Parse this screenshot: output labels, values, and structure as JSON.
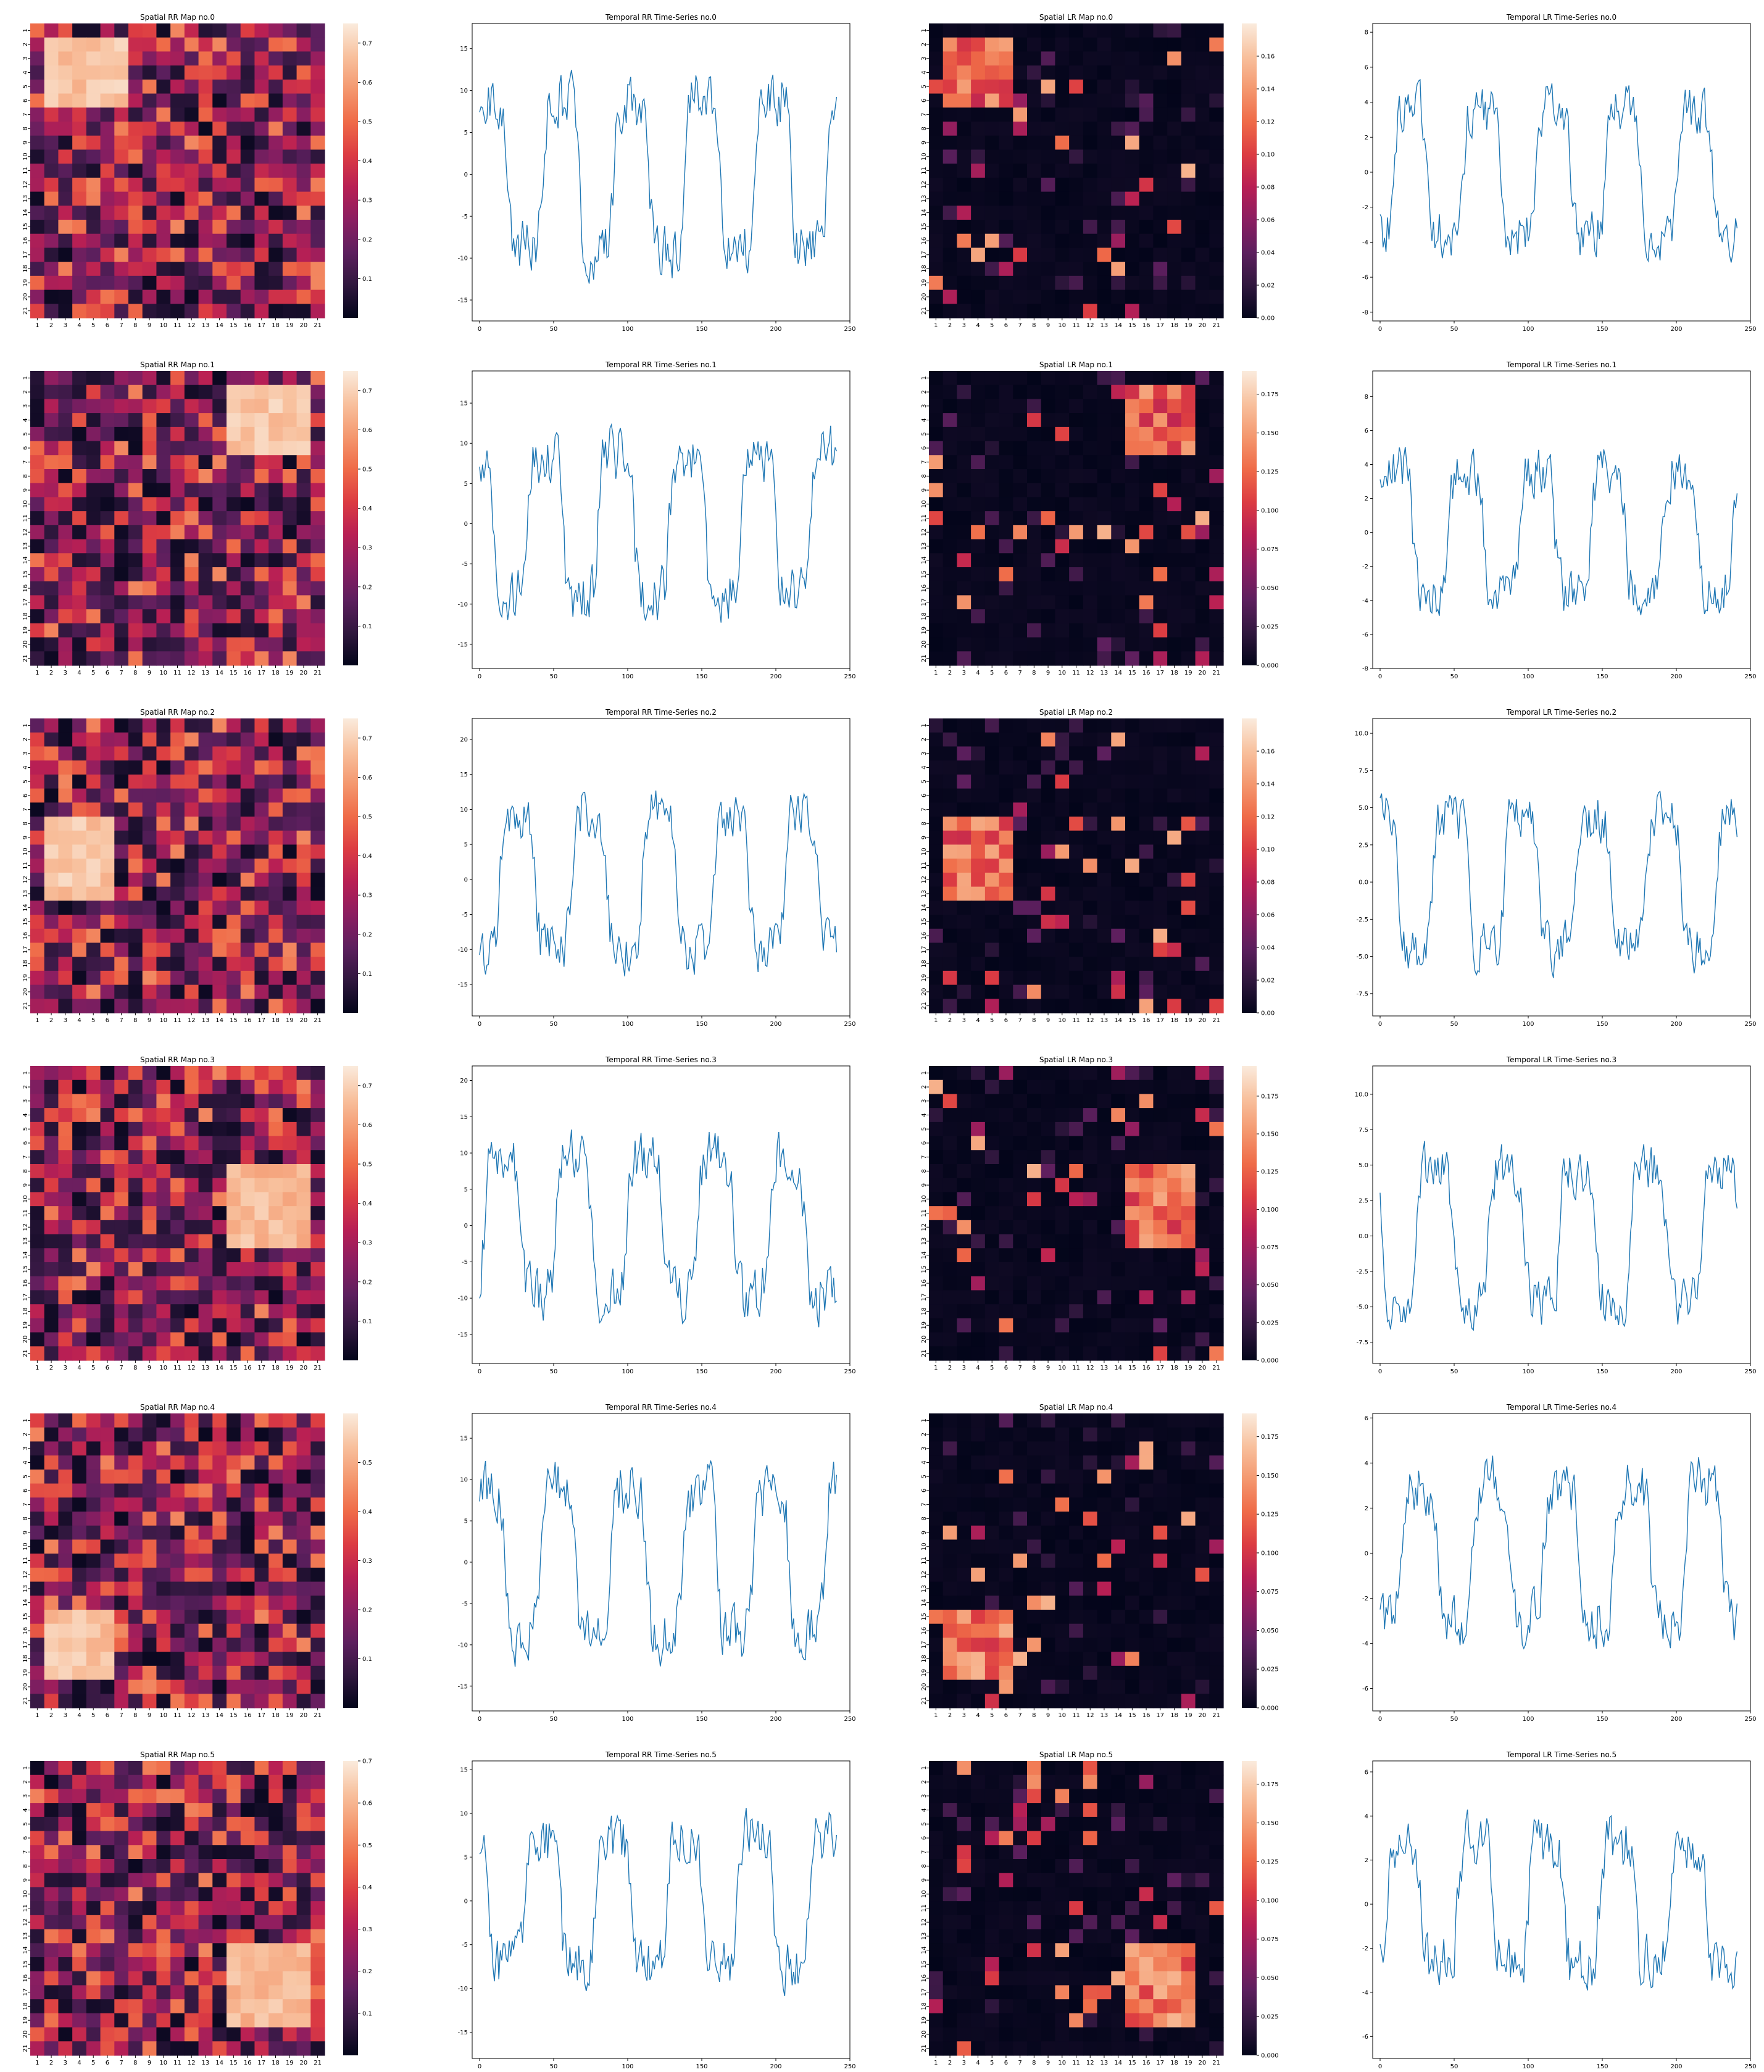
{
  "palette": {
    "line_color": "#1f77b4",
    "heat_colors": [
      "#03051a",
      "#30173e",
      "#5d1f5e",
      "#8b1e61",
      "#b81f54",
      "#dc3c42",
      "#ef6b48",
      "#f4986f",
      "#f8c19e",
      "#faebdd"
    ]
  },
  "cell_labels": [
    "1",
    "2",
    "3",
    "4",
    "5",
    "6",
    "7",
    "8",
    "9",
    "10",
    "11",
    "12",
    "13",
    "14",
    "15",
    "16",
    "17",
    "18",
    "19",
    "20",
    "21"
  ],
  "chart_data": [
    {
      "row": 0,
      "col": 0,
      "type": "heatmap",
      "title": "Spatial RR Map no.0",
      "size": 21,
      "block": {
        "r0": 1,
        "c0": 1,
        "h": 5,
        "w": 6
      },
      "block_level": 0.96,
      "noise_seed": 11,
      "colorbar": {
        "min": 0,
        "max": 0.75,
        "ticks": [
          0.1,
          0.2,
          0.3,
          0.4,
          0.5,
          0.6,
          0.7
        ],
        "decimals": 1
      },
      "sparse": false
    },
    {
      "row": 0,
      "col": 1,
      "type": "line",
      "title": "Temporal RR Time-Series no.0",
      "n_points": 242,
      "xlim": [
        -5,
        250
      ],
      "ylim": [
        -17.5,
        18
      ],
      "xticks": [
        0,
        50,
        100,
        150,
        200,
        250
      ],
      "yticks": [
        -15,
        -10,
        -5,
        0,
        5,
        10,
        15
      ],
      "amplitude": 11,
      "noise": 3.2,
      "seed": 21
    },
    {
      "row": 0,
      "col": 2,
      "type": "heatmap",
      "title": "Spatial LR Map no.0",
      "size": 21,
      "block": {
        "r0": 1,
        "c0": 1,
        "h": 5,
        "w": 5
      },
      "block_level": 0.82,
      "noise_seed": 31,
      "colorbar": {
        "min": 0,
        "max": 0.18,
        "ticks": [
          0.0,
          0.02,
          0.04,
          0.06,
          0.08,
          0.1,
          0.12,
          0.14,
          0.16
        ],
        "decimals": 2
      },
      "sparse": true
    },
    {
      "row": 0,
      "col": 3,
      "type": "line",
      "title": "Temporal LR Time-Series no.0",
      "n_points": 242,
      "xlim": [
        -5,
        250
      ],
      "ylim": [
        -8.5,
        8.5
      ],
      "xticks": [
        0,
        50,
        100,
        150,
        200,
        250
      ],
      "yticks": [
        -8,
        -6,
        -4,
        -2,
        0,
        2,
        4,
        6,
        8
      ],
      "amplitude": 4.5,
      "noise": 1.3,
      "seed": 41
    },
    {
      "row": 1,
      "col": 0,
      "type": "heatmap",
      "title": "Spatial RR Map no.1",
      "size": 21,
      "block": {
        "r0": 1,
        "c0": 14,
        "h": 5,
        "w": 6
      },
      "block_level": 0.96,
      "noise_seed": 12,
      "colorbar": {
        "min": 0,
        "max": 0.75,
        "ticks": [
          0.1,
          0.2,
          0.3,
          0.4,
          0.5,
          0.6,
          0.7
        ],
        "decimals": 1
      },
      "sparse": false
    },
    {
      "row": 1,
      "col": 1,
      "type": "line",
      "title": "Temporal RR Time-Series no.1",
      "n_points": 242,
      "xlim": [
        -5,
        250
      ],
      "ylim": [
        -18,
        19
      ],
      "xticks": [
        0,
        50,
        100,
        150,
        200,
        250
      ],
      "yticks": [
        -15,
        -10,
        -5,
        0,
        5,
        10,
        15
      ],
      "amplitude": 11,
      "noise": 3.2,
      "seed": 22
    },
    {
      "row": 1,
      "col": 2,
      "type": "heatmap",
      "title": "Spatial LR Map no.1",
      "size": 21,
      "block": {
        "r0": 1,
        "c0": 14,
        "h": 5,
        "w": 5
      },
      "block_level": 0.82,
      "noise_seed": 32,
      "colorbar": {
        "min": 0,
        "max": 0.19,
        "ticks": [
          0.0,
          0.025,
          0.05,
          0.075,
          0.1,
          0.125,
          0.15,
          0.175
        ],
        "decimals": 3
      },
      "sparse": true
    },
    {
      "row": 1,
      "col": 3,
      "type": "line",
      "title": "Temporal LR Time-Series no.1",
      "n_points": 242,
      "xlim": [
        -5,
        250
      ],
      "ylim": [
        -8,
        9.5
      ],
      "xticks": [
        0,
        50,
        100,
        150,
        200,
        250
      ],
      "yticks": [
        -8,
        -6,
        -4,
        -2,
        0,
        2,
        4,
        6,
        8
      ],
      "amplitude": 4.5,
      "noise": 1.3,
      "seed": 42
    },
    {
      "row": 2,
      "col": 0,
      "type": "heatmap",
      "title": "Spatial RR Map no.2",
      "size": 21,
      "block": {
        "r0": 7,
        "c0": 1,
        "h": 6,
        "w": 5
      },
      "block_level": 0.96,
      "noise_seed": 13,
      "colorbar": {
        "min": 0,
        "max": 0.75,
        "ticks": [
          0.1,
          0.2,
          0.3,
          0.4,
          0.5,
          0.6,
          0.7
        ],
        "decimals": 1
      },
      "sparse": false
    },
    {
      "row": 2,
      "col": 1,
      "type": "line",
      "title": "Temporal RR Time-Series no.2",
      "n_points": 242,
      "xlim": [
        -5,
        250
      ],
      "ylim": [
        -19.5,
        23
      ],
      "xticks": [
        0,
        50,
        100,
        150,
        200,
        250
      ],
      "yticks": [
        -15,
        -10,
        -5,
        0,
        5,
        10,
        15,
        20
      ],
      "amplitude": 12,
      "noise": 3.4,
      "seed": 23
    },
    {
      "row": 2,
      "col": 2,
      "type": "heatmap",
      "title": "Spatial LR Map no.2",
      "size": 21,
      "block": {
        "r0": 7,
        "c0": 1,
        "h": 6,
        "w": 5
      },
      "block_level": 0.82,
      "noise_seed": 33,
      "colorbar": {
        "min": 0,
        "max": 0.18,
        "ticks": [
          0.0,
          0.02,
          0.04,
          0.06,
          0.08,
          0.1,
          0.12,
          0.14,
          0.16
        ],
        "decimals": 2
      },
      "sparse": true
    },
    {
      "row": 2,
      "col": 3,
      "type": "line",
      "title": "Temporal LR Time-Series no.2",
      "n_points": 242,
      "xlim": [
        -5,
        250
      ],
      "ylim": [
        -9,
        11
      ],
      "xticks": [
        0,
        50,
        100,
        150,
        200,
        250
      ],
      "yticks": [
        -7.5,
        -5.0,
        -2.5,
        0.0,
        2.5,
        5.0,
        7.5,
        10.0
      ],
      "amplitude": 5.5,
      "noise": 1.5,
      "seed": 43
    },
    {
      "row": 3,
      "col": 0,
      "type": "heatmap",
      "title": "Spatial RR Map no.3",
      "size": 21,
      "block": {
        "r0": 7,
        "c0": 14,
        "h": 6,
        "w": 6
      },
      "block_level": 0.93,
      "noise_seed": 14,
      "colorbar": {
        "min": 0,
        "max": 0.75,
        "ticks": [
          0.1,
          0.2,
          0.3,
          0.4,
          0.5,
          0.6,
          0.7
        ],
        "decimals": 1
      },
      "sparse": false
    },
    {
      "row": 3,
      "col": 1,
      "type": "line",
      "title": "Temporal RR Time-Series no.3",
      "n_points": 242,
      "xlim": [
        -5,
        250
      ],
      "ylim": [
        -19,
        22
      ],
      "xticks": [
        0,
        50,
        100,
        150,
        200,
        250
      ],
      "yticks": [
        -15,
        -10,
        -5,
        0,
        5,
        10,
        15,
        20
      ],
      "amplitude": 12,
      "noise": 3.4,
      "seed": 24
    },
    {
      "row": 3,
      "col": 2,
      "type": "heatmap",
      "title": "Spatial LR Map no.3",
      "size": 21,
      "block": {
        "r0": 7,
        "c0": 14,
        "h": 6,
        "w": 5
      },
      "block_level": 0.85,
      "noise_seed": 34,
      "colorbar": {
        "min": 0,
        "max": 0.195,
        "ticks": [
          0.0,
          0.025,
          0.05,
          0.075,
          0.1,
          0.125,
          0.15,
          0.175
        ],
        "decimals": 3
      },
      "sparse": true
    },
    {
      "row": 3,
      "col": 3,
      "type": "line",
      "title": "Temporal LR Time-Series no.3",
      "n_points": 242,
      "xlim": [
        -5,
        250
      ],
      "ylim": [
        -9,
        12
      ],
      "xticks": [
        0,
        50,
        100,
        150,
        200,
        250
      ],
      "yticks": [
        -7.5,
        -5.0,
        -2.5,
        0.0,
        2.5,
        5.0,
        7.5,
        10.0
      ],
      "amplitude": 6,
      "noise": 1.6,
      "seed": 44
    },
    {
      "row": 4,
      "col": 0,
      "type": "heatmap",
      "title": "Spatial RR Map no.4",
      "size": 21,
      "block": {
        "r0": 14,
        "c0": 1,
        "h": 5,
        "w": 5
      },
      "block_level": 0.95,
      "noise_seed": 15,
      "colorbar": {
        "min": 0,
        "max": 0.6,
        "ticks": [
          0.1,
          0.2,
          0.3,
          0.4,
          0.5
        ],
        "decimals": 1
      },
      "sparse": false
    },
    {
      "row": 4,
      "col": 1,
      "type": "line",
      "title": "Temporal RR Time-Series no.4",
      "n_points": 242,
      "xlim": [
        -5,
        250
      ],
      "ylim": [
        -18,
        18
      ],
      "xticks": [
        0,
        50,
        100,
        150,
        200,
        250
      ],
      "yticks": [
        -15,
        -10,
        -5,
        0,
        5,
        10,
        15
      ],
      "amplitude": 11,
      "noise": 3.2,
      "seed": 25
    },
    {
      "row": 4,
      "col": 2,
      "type": "heatmap",
      "title": "Spatial LR Map no.4",
      "size": 21,
      "block": {
        "r0": 14,
        "c0": 1,
        "h": 5,
        "w": 5
      },
      "block_level": 0.86,
      "noise_seed": 35,
      "colorbar": {
        "min": 0,
        "max": 0.19,
        "ticks": [
          0.0,
          0.025,
          0.05,
          0.075,
          0.1,
          0.125,
          0.15,
          0.175
        ],
        "decimals": 3
      },
      "sparse": true
    },
    {
      "row": 4,
      "col": 3,
      "type": "line",
      "title": "Temporal LR Time-Series no.4",
      "n_points": 242,
      "xlim": [
        -5,
        250
      ],
      "ylim": [
        -7,
        6.2
      ],
      "xticks": [
        0,
        50,
        100,
        150,
        200,
        250
      ],
      "yticks": [
        -6,
        -4,
        -2,
        0,
        2,
        4,
        6
      ],
      "amplitude": 3.8,
      "noise": 1.1,
      "seed": 45
    },
    {
      "row": 5,
      "col": 0,
      "type": "heatmap",
      "title": "Spatial RR Map no.5",
      "size": 21,
      "block": {
        "r0": 13,
        "c0": 14,
        "h": 6,
        "w": 6
      },
      "block_level": 0.93,
      "noise_seed": 16,
      "colorbar": {
        "min": 0,
        "max": 0.7,
        "ticks": [
          0.1,
          0.2,
          0.3,
          0.4,
          0.5,
          0.6,
          0.7
        ],
        "decimals": 1
      },
      "sparse": false
    },
    {
      "row": 5,
      "col": 1,
      "type": "line",
      "title": "Temporal RR Time-Series no.5",
      "n_points": 242,
      "xlim": [
        -5,
        250
      ],
      "ylim": [
        -18,
        16
      ],
      "xticks": [
        0,
        50,
        100,
        150,
        200,
        250
      ],
      "yticks": [
        -15,
        -10,
        -5,
        0,
        5,
        10,
        15
      ],
      "amplitude": 9,
      "noise": 2.8,
      "seed": 26
    },
    {
      "row": 5,
      "col": 2,
      "type": "heatmap",
      "title": "Spatial LR Map no.5",
      "size": 21,
      "block": {
        "r0": 13,
        "c0": 14,
        "h": 6,
        "w": 5
      },
      "block_level": 0.86,
      "noise_seed": 36,
      "colorbar": {
        "min": 0,
        "max": 0.19,
        "ticks": [
          0.0,
          0.025,
          0.05,
          0.075,
          0.1,
          0.125,
          0.15,
          0.175
        ],
        "decimals": 3
      },
      "sparse": true
    },
    {
      "row": 5,
      "col": 3,
      "type": "line",
      "title": "Temporal LR Time-Series no.5",
      "n_points": 242,
      "xlim": [
        -5,
        250
      ],
      "ylim": [
        -7,
        6.5
      ],
      "xticks": [
        0,
        50,
        100,
        150,
        200,
        250
      ],
      "yticks": [
        -6,
        -4,
        -2,
        0,
        2,
        4,
        6
      ],
      "amplitude": 3.5,
      "noise": 1.2,
      "seed": 46
    }
  ]
}
